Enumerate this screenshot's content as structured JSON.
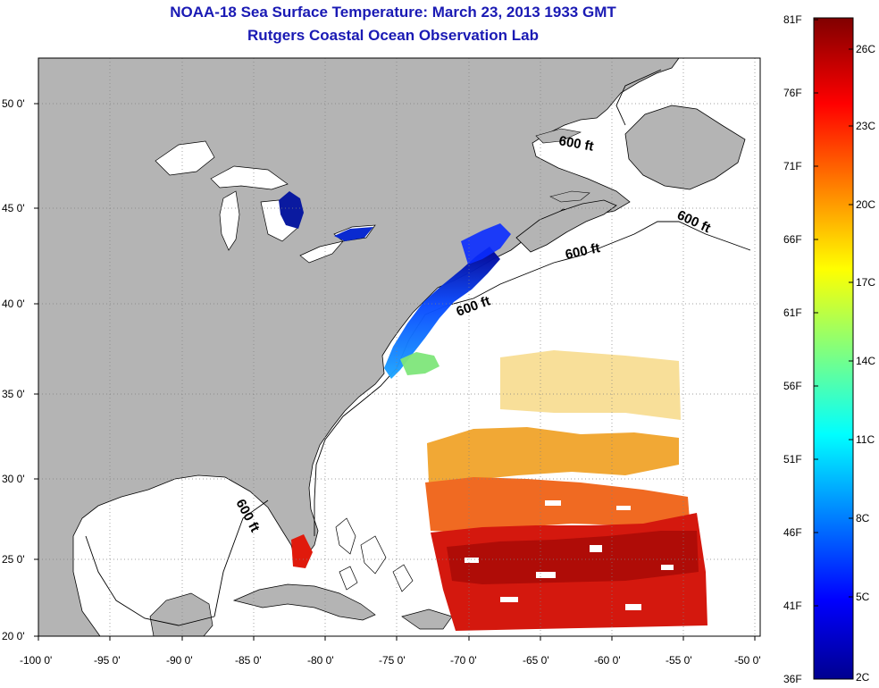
{
  "header": {
    "title": "NOAA-18 Sea Surface Temperature:  March 23, 2013 1933 GMT",
    "subtitle": "Rutgers Coastal Ocean Observation Lab"
  },
  "map": {
    "lon_ticks": [
      "-100 0'",
      "-95 0'",
      "-90 0'",
      "-85 0'",
      "-80 0'",
      "-75 0'",
      "-70 0'",
      "-65 0'",
      "-60 0'",
      "-55 0'",
      "-50 0'"
    ],
    "lat_ticks": [
      "50 0'",
      "45 0'",
      "40 0'",
      "35 0'",
      "30 0'",
      "25 0'",
      "20 0'"
    ],
    "isobath_labels": [
      "600 ft",
      "600 ft",
      "600 ft",
      "600 ft",
      "600 ft"
    ],
    "colors": {
      "land": "#b4b4b4",
      "ocean_no_data": "#ffffff",
      "grid": "#808080"
    }
  },
  "colorbar": {
    "fahrenheit_labels": [
      "81F",
      "76F",
      "71F",
      "66F",
      "61F",
      "56F",
      "51F",
      "46F",
      "41F",
      "36F"
    ],
    "celsius_labels": [
      "26C",
      "23C",
      "20C",
      "17C",
      "14C",
      "11C",
      "8C",
      "5C",
      "2C"
    ],
    "colormap": "jet"
  }
}
